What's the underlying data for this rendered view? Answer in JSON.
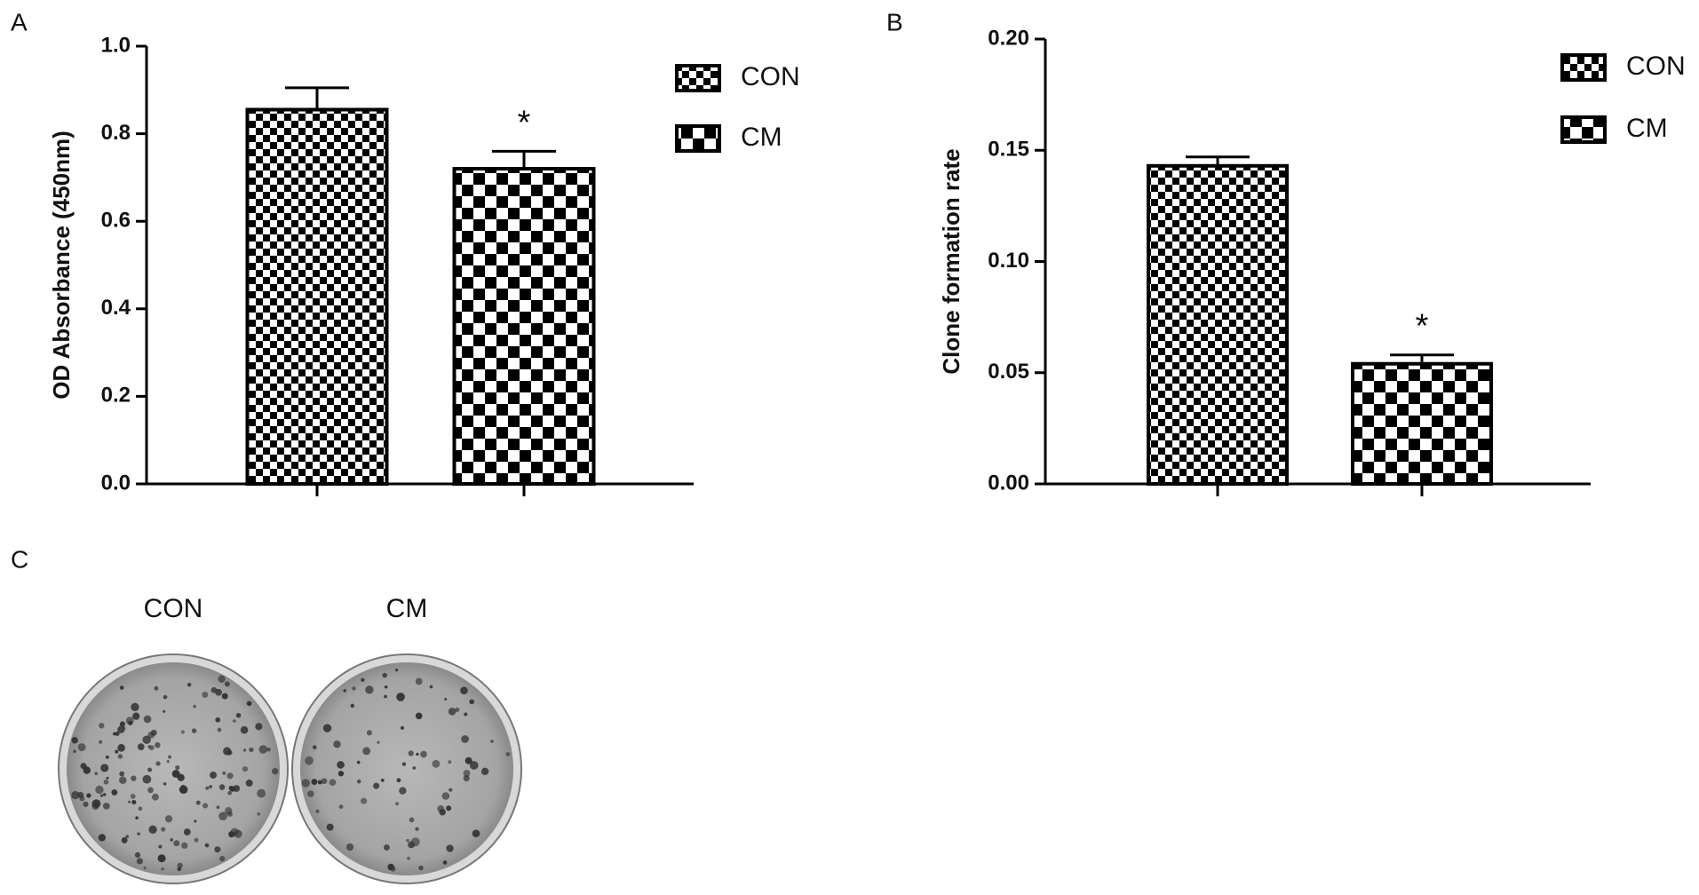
{
  "chart_data": [
    {
      "type": "bar",
      "panel": "A",
      "ylabel": "OD Absorbance (450nm)",
      "categories": [
        null
      ],
      "series": [
        {
          "name": "CON",
          "color": "#000000",
          "values": [
            0.855
          ],
          "errors": [
            0.05
          ]
        },
        {
          "name": "CM",
          "color": "#000000",
          "values": [
            0.72
          ],
          "errors": [
            0.04
          ],
          "annotation": "*"
        }
      ],
      "ylim": [
        0,
        1.0
      ],
      "yticks": [
        {
          "value": 0,
          "label": "0.0"
        },
        0.2,
        0.4,
        0.6,
        0.8,
        {
          "value": 1.0,
          "label": "1.0"
        }
      ],
      "legend": "top-right"
    },
    {
      "type": "bar",
      "panel": "B",
      "ylabel": "Clone formation rate",
      "categories": [
        null
      ],
      "series": [
        {
          "name": "CON",
          "color": "#000000",
          "values": [
            0.143
          ],
          "errors": [
            0.004
          ]
        },
        {
          "name": "CM",
          "color": "#000000",
          "values": [
            0.054
          ],
          "errors": [
            0.004
          ],
          "annotation": "*"
        }
      ],
      "ylim": [
        0,
        0.2
      ],
      "yticks": [
        {
          "value": 0,
          "label": "0.00"
        },
        0.05,
        {
          "value": 0.1,
          "label": "0.10"
        },
        0.15,
        {
          "value": 0.2,
          "label": "0.20"
        }
      ],
      "legend": "top-right"
    }
  ],
  "panel_c": {
    "label": "C",
    "plates": [
      "CON",
      "CM"
    ]
  }
}
